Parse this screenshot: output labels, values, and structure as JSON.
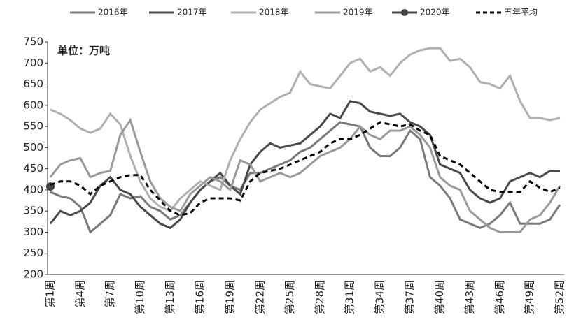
{
  "chart_data": {
    "type": "line",
    "annotation": "单位：万吨",
    "categories": [
      "第1周",
      null,
      null,
      "第4周",
      null,
      null,
      "第7周",
      null,
      null,
      "第10周",
      null,
      null,
      "第13周",
      null,
      null,
      "第16周",
      null,
      null,
      "第19周",
      null,
      null,
      "第22周",
      null,
      null,
      "第25周",
      null,
      null,
      "第28周",
      null,
      null,
      "第31周",
      null,
      null,
      "第34周",
      null,
      null,
      "第37周",
      null,
      null,
      "第40周",
      null,
      null,
      "第43周",
      null,
      null,
      "第46周",
      null,
      null,
      "第49周",
      null,
      null,
      "第52周"
    ],
    "ylim": [
      200,
      750
    ],
    "yticks": [
      200,
      250,
      300,
      350,
      400,
      450,
      500,
      550,
      600,
      650,
      700,
      750
    ],
    "series": [
      {
        "name": "2016年",
        "color": "#7a7a7a",
        "values": [
          395,
          385,
          380,
          360,
          300,
          320,
          340,
          390,
          380,
          385,
          360,
          350,
          330,
          340,
          370,
          400,
          420,
          430,
          410,
          400,
          440,
          440,
          450,
          460,
          470,
          490,
          500,
          520,
          540,
          560,
          555,
          550,
          500,
          480,
          480,
          500,
          540,
          520,
          430,
          410,
          380,
          330,
          320,
          310,
          320,
          340,
          370,
          320,
          320,
          320,
          330,
          365
        ]
      },
      {
        "name": "2017年",
        "color": "#4a4a4a",
        "values": [
          320,
          350,
          340,
          350,
          370,
          410,
          430,
          400,
          390,
          360,
          340,
          320,
          310,
          330,
          370,
          400,
          420,
          440,
          410,
          390,
          460,
          490,
          510,
          500,
          505,
          510,
          530,
          550,
          580,
          570,
          610,
          605,
          585,
          580,
          575,
          580,
          560,
          550,
          530,
          460,
          450,
          440,
          400,
          380,
          370,
          380,
          420,
          430,
          440,
          430,
          445,
          445
        ]
      },
      {
        "name": "2018年",
        "color": "#b0b0b0",
        "values": [
          590,
          580,
          565,
          545,
          535,
          545,
          580,
          555,
          480,
          420,
          380,
          360,
          350,
          380,
          400,
          420,
          410,
          400,
          470,
          520,
          560,
          590,
          605,
          620,
          630,
          680,
          650,
          645,
          640,
          670,
          700,
          710,
          680,
          690,
          670,
          700,
          720,
          730,
          735,
          735,
          705,
          710,
          690,
          655,
          650,
          640,
          670,
          610,
          570,
          570,
          565,
          570
        ]
      },
      {
        "name": "2019年",
        "color": "#9a9a9a",
        "values": [
          430,
          460,
          470,
          475,
          430,
          440,
          445,
          530,
          565,
          490,
          420,
          380,
          360,
          350,
          390,
          410,
          430,
          420,
          400,
          470,
          460,
          420,
          430,
          440,
          430,
          440,
          460,
          480,
          490,
          500,
          520,
          550,
          530,
          520,
          540,
          540,
          550,
          530,
          500,
          430,
          410,
          400,
          350,
          330,
          310,
          300,
          300,
          300,
          330,
          340,
          370,
          410
        ]
      },
      {
        "name": "2020年",
        "color": "#444444",
        "marker": true,
        "values": [
          408,
          null,
          null,
          null,
          null,
          null,
          null,
          null,
          null,
          null,
          null,
          null,
          null,
          null,
          null,
          null,
          null,
          null,
          null,
          null,
          null,
          null,
          null,
          null,
          null,
          null,
          null,
          null,
          null,
          null,
          null,
          null,
          null,
          null,
          null,
          null,
          null,
          null,
          null,
          null,
          null,
          null,
          null,
          null,
          null,
          null,
          null,
          null,
          null,
          null,
          null,
          null
        ]
      },
      {
        "name": "五年平均",
        "color": "#000000",
        "dashed": true,
        "values": [
          412,
          420,
          420,
          410,
          390,
          410,
          420,
          430,
          435,
          435,
          400,
          375,
          350,
          340,
          345,
          370,
          380,
          380,
          380,
          375,
          420,
          440,
          445,
          450,
          460,
          470,
          480,
          490,
          510,
          520,
          520,
          530,
          545,
          560,
          555,
          550,
          555,
          540,
          530,
          480,
          470,
          460,
          440,
          420,
          400,
          395,
          395,
          395,
          420,
          405,
          395,
          405
        ]
      }
    ]
  }
}
